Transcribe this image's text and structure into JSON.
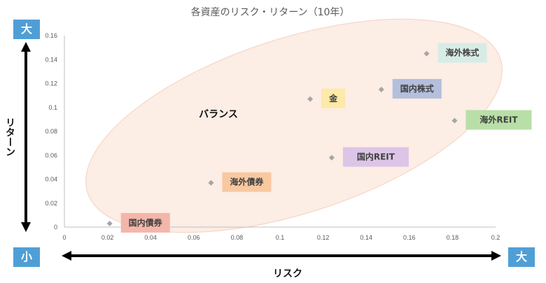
{
  "chart_data": {
    "type": "scatter",
    "title": "各資産のリスク・リターン（10年）",
    "xlabel": "リスク",
    "ylabel": "リターン",
    "xlim": [
      0,
      0.2
    ],
    "ylim": [
      0,
      0.16
    ],
    "x_ticks": [
      "0",
      "0.02",
      "0.04",
      "0.06",
      "0.08",
      "0.1",
      "0.12",
      "0.14",
      "0.16",
      "0.18",
      "0.2"
    ],
    "y_ticks": [
      "0",
      "0.02",
      "0.04",
      "0.06",
      "0.08",
      "0.1",
      "0.12",
      "0.14",
      "0.16"
    ],
    "points": [
      {
        "label": "国内債券",
        "x": 0.021,
        "y": 0.003,
        "color": "#f4b6aa"
      },
      {
        "label": "海外債券",
        "x": 0.068,
        "y": 0.037,
        "color": "#f8c8a0"
      },
      {
        "label": "金",
        "x": 0.114,
        "y": 0.107,
        "color": "#fde9a8"
      },
      {
        "label": "国内REIT",
        "x": 0.124,
        "y": 0.058,
        "color": "#dcc5e6"
      },
      {
        "label": "国内株式",
        "x": 0.147,
        "y": 0.115,
        "color": "#b4bfdd"
      },
      {
        "label": "海外株式",
        "x": 0.168,
        "y": 0.145,
        "color": "#d8ece6"
      },
      {
        "label": "海外REIT",
        "x": 0.181,
        "y": 0.089,
        "color": "#b9dfa8"
      }
    ],
    "annotation": "バランス",
    "y_arrow_top": "大",
    "y_arrow_bottom": "小",
    "x_arrow_right": "大"
  }
}
